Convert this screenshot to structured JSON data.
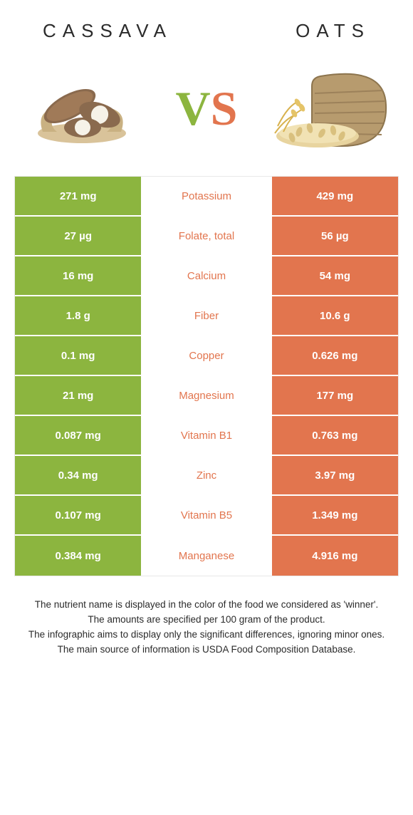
{
  "colors": {
    "green": "#8cb53f",
    "orange": "#e2754e",
    "white": "#ffffff",
    "border": "#e8e8e8",
    "text": "#2b2b2b"
  },
  "header": {
    "left_title": "CASSAVA",
    "right_title": "OATS",
    "vs_v": "V",
    "vs_s": "S"
  },
  "icons": {
    "left": "cassava",
    "right": "oats"
  },
  "table": {
    "left_color": "#8cb53f",
    "right_color": "#e2754e",
    "rows": [
      {
        "left": "271 mg",
        "label": "Potassium",
        "right": "429 mg",
        "winner": "right"
      },
      {
        "left": "27 µg",
        "label": "Folate, total",
        "right": "56 µg",
        "winner": "right"
      },
      {
        "left": "16 mg",
        "label": "Calcium",
        "right": "54 mg",
        "winner": "right"
      },
      {
        "left": "1.8 g",
        "label": "Fiber",
        "right": "10.6 g",
        "winner": "right"
      },
      {
        "left": "0.1 mg",
        "label": "Copper",
        "right": "0.626 mg",
        "winner": "right"
      },
      {
        "left": "21 mg",
        "label": "Magnesium",
        "right": "177 mg",
        "winner": "right"
      },
      {
        "left": "0.087 mg",
        "label": "Vitamin B1",
        "right": "0.763 mg",
        "winner": "right"
      },
      {
        "left": "0.34 mg",
        "label": "Zinc",
        "right": "3.97 mg",
        "winner": "right"
      },
      {
        "left": "0.107 mg",
        "label": "Vitamin B5",
        "right": "1.349 mg",
        "winner": "right"
      },
      {
        "left": "0.384 mg",
        "label": "Manganese",
        "right": "4.916 mg",
        "winner": "right"
      }
    ]
  },
  "notes": {
    "line1": "The nutrient name is displayed in the color of the food we considered as 'winner'.",
    "line2": "The amounts are specified per 100 gram of the product.",
    "line3": "The infographic aims to display only the significant differences, ignoring minor ones.",
    "line4": "The main source of information is USDA Food Composition Database."
  }
}
